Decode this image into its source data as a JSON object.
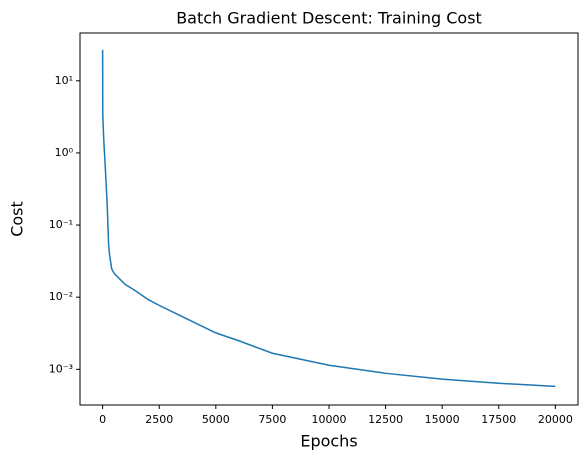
{
  "chart_data": {
    "type": "line",
    "title": "Batch Gradient Descent: Training Cost",
    "xlabel": "Epochs",
    "ylabel": "Cost",
    "x": [
      0,
      5,
      50,
      100,
      200,
      264,
      300,
      396,
      450,
      529,
      1000,
      1500,
      2000,
      2500,
      3500,
      5000,
      6000,
      7500,
      10000,
      12500,
      15000,
      17500,
      20000
    ],
    "series": [
      {
        "name": "Cost",
        "color": "#1f77b4",
        "values": [
          27,
          3.5,
          1.5,
          0.8,
          0.2,
          0.053,
          0.04,
          0.025,
          0.023,
          0.021,
          0.015,
          0.012,
          0.0093,
          0.0077,
          0.0054,
          0.0032,
          0.0025,
          0.00167,
          0.00114,
          0.00088,
          0.00073,
          0.00064,
          0.00058
        ]
      }
    ],
    "xlim": [
      -1000,
      21000
    ],
    "xticks": [
      0,
      2500,
      5000,
      7500,
      10000,
      12500,
      15000,
      17500,
      20000
    ],
    "ylim": [
      0.00032,
      46
    ],
    "yscale": "log",
    "yticks": [
      {
        "value": 0.001,
        "label": "10⁻³"
      },
      {
        "value": 0.01,
        "label": "10⁻²"
      },
      {
        "value": 0.1,
        "label": "10⁻¹"
      },
      {
        "value": 1,
        "label": "10⁰"
      },
      {
        "value": 10,
        "label": "10¹"
      }
    ],
    "grid": false
  }
}
